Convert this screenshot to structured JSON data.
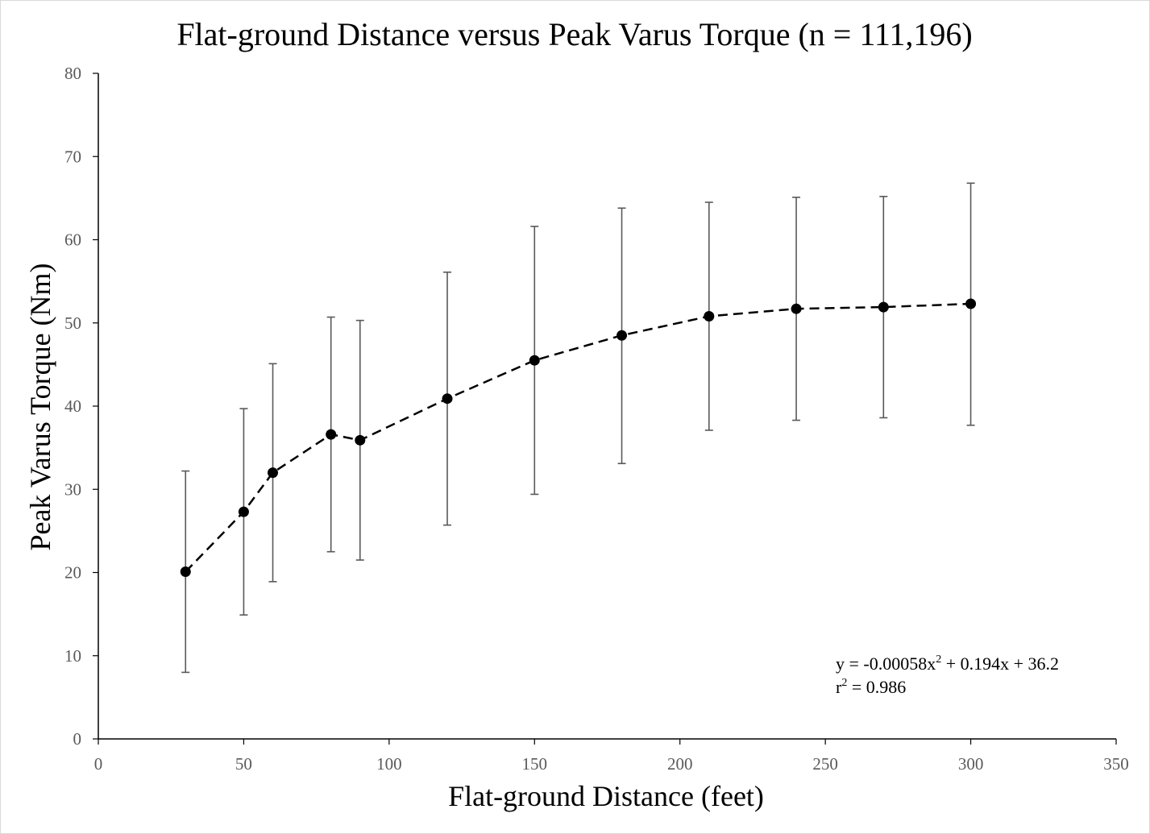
{
  "chart_data": {
    "type": "scatter",
    "title": "Flat-ground Distance versus Peak Varus Torque (n = 111,196)",
    "xlabel": "Flat-ground Distance (feet)",
    "ylabel": "Peak Varus Torque (Nm)",
    "xlim": [
      0,
      350
    ],
    "ylim": [
      0,
      80
    ],
    "x_ticks": [
      "0",
      "50",
      "100",
      "150",
      "200",
      "250",
      "300",
      "350"
    ],
    "y_ticks": [
      "0",
      "10",
      "20",
      "30",
      "40",
      "50",
      "60",
      "70",
      "80"
    ],
    "series": [
      {
        "name": "Peak Varus Torque",
        "line_style": "dashed",
        "marker": "circle",
        "color": "#000000",
        "points": [
          {
            "x": 30,
            "y": 20.1,
            "err_low": 8.0,
            "err_high": 32.2
          },
          {
            "x": 50,
            "y": 27.3,
            "err_low": 14.9,
            "err_high": 39.7
          },
          {
            "x": 60,
            "y": 32.0,
            "err_low": 18.9,
            "err_high": 45.1
          },
          {
            "x": 80,
            "y": 36.6,
            "err_low": 22.5,
            "err_high": 50.7
          },
          {
            "x": 90,
            "y": 35.9,
            "err_low": 21.5,
            "err_high": 50.3
          },
          {
            "x": 120,
            "y": 40.9,
            "err_low": 25.7,
            "err_high": 56.1
          },
          {
            "x": 150,
            "y": 45.5,
            "err_low": 29.4,
            "err_high": 61.6
          },
          {
            "x": 180,
            "y": 48.5,
            "err_low": 33.1,
            "err_high": 63.8
          },
          {
            "x": 210,
            "y": 50.8,
            "err_low": 37.1,
            "err_high": 64.5
          },
          {
            "x": 240,
            "y": 51.7,
            "err_low": 38.3,
            "err_high": 65.1
          },
          {
            "x": 270,
            "y": 51.9,
            "err_low": 38.6,
            "err_high": 65.2
          },
          {
            "x": 300,
            "y": 52.3,
            "err_low": 37.7,
            "err_high": 66.8
          }
        ]
      }
    ],
    "annotation": {
      "equation_prefix": "y = -0.00058x",
      "equation_sup": "2",
      "equation_suffix": " + 0.194x + 36.2",
      "r2_prefix": "r",
      "r2_sup": "2",
      "r2_suffix": " = 0.986"
    },
    "colors": {
      "axis": "#000000",
      "tick_label": "#595959",
      "error_bar": "#595959",
      "marker": "#000000"
    }
  }
}
